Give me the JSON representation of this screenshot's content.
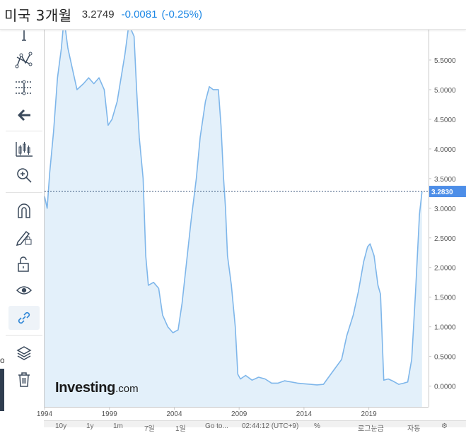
{
  "header": {
    "instrument_name": "미국 3개월",
    "price": "3.2749",
    "change": "-0.0081",
    "change_percent": "(-0.25%)",
    "change_color": "#1e88e5"
  },
  "toolbar": {
    "tools": [
      {
        "icon": "crosshair-icon"
      },
      {
        "icon": "pattern-draw-icon"
      },
      {
        "icon": "fibonacci-icon"
      },
      {
        "icon": "back-arrow-icon"
      },
      {
        "icon": "candlestick-icon"
      },
      {
        "icon": "zoom-icon"
      },
      {
        "icon": "magnet-icon"
      },
      {
        "icon": "pencil-lock-icon"
      },
      {
        "icon": "unlock-icon"
      },
      {
        "icon": "eye-icon"
      },
      {
        "icon": "link-icon"
      },
      {
        "icon": "layers-icon"
      },
      {
        "icon": "trash-icon"
      }
    ]
  },
  "side_stub_text": "o",
  "watermark": {
    "brand": "Investing",
    "suffix": ".com"
  },
  "bottom_bar": {
    "items": [
      "10y",
      "1y",
      "1m",
      "7일",
      "1일",
      "Go to...",
      "02:44:12 (UTC+9)",
      "%",
      "로그눈금",
      "자동"
    ]
  },
  "colors": {
    "line": "#7eb6ea",
    "fill": "#e3f0fa",
    "last_price_label_bg": "#4d8ee8",
    "accent": "#1e88e5"
  },
  "chart_data": {
    "type": "area",
    "title": "미국 3개월",
    "xlabel": "",
    "ylabel": "",
    "x_tick_labels": [
      "1994",
      "1999",
      "2004",
      "2009",
      "2014",
      "2019"
    ],
    "y_tick_labels": [
      "0.0000",
      "0.5000",
      "1.0000",
      "1.5000",
      "2.0000",
      "2.5000",
      "3.0000",
      "3.5000",
      "4.0000",
      "4.5000",
      "5.0000",
      "5.5000"
    ],
    "ylim": [
      -0.35,
      6.0
    ],
    "xlim": [
      1994.0,
      2023.6
    ],
    "last_value_label": "3.2830",
    "last_value": 3.283,
    "grid": false,
    "series": [
      {
        "values": [
          [
            1994.0,
            3.2
          ],
          [
            1994.2,
            3.0
          ],
          [
            1994.4,
            3.6
          ],
          [
            1994.7,
            4.3
          ],
          [
            1995.0,
            5.2
          ],
          [
            1995.3,
            5.7
          ],
          [
            1995.5,
            6.2
          ],
          [
            1995.8,
            5.7
          ],
          [
            1996.1,
            5.4
          ],
          [
            1996.5,
            5.0
          ],
          [
            1997.0,
            5.1
          ],
          [
            1997.4,
            5.2
          ],
          [
            1997.8,
            5.1
          ],
          [
            1998.2,
            5.2
          ],
          [
            1998.6,
            5.0
          ],
          [
            1998.9,
            4.4
          ],
          [
            1999.2,
            4.5
          ],
          [
            1999.6,
            4.8
          ],
          [
            1999.9,
            5.2
          ],
          [
            2000.2,
            5.6
          ],
          [
            2000.5,
            6.1
          ],
          [
            2000.7,
            6.0
          ],
          [
            2000.9,
            5.9
          ],
          [
            2001.1,
            5.0
          ],
          [
            2001.3,
            4.2
          ],
          [
            2001.6,
            3.5
          ],
          [
            2001.8,
            2.2
          ],
          [
            2002.0,
            1.7
          ],
          [
            2002.4,
            1.75
          ],
          [
            2002.8,
            1.65
          ],
          [
            2003.1,
            1.2
          ],
          [
            2003.5,
            1.0
          ],
          [
            2003.9,
            0.9
          ],
          [
            2004.3,
            0.95
          ],
          [
            2004.6,
            1.4
          ],
          [
            2004.9,
            2.0
          ],
          [
            2005.3,
            2.8
          ],
          [
            2005.7,
            3.5
          ],
          [
            2006.0,
            4.2
          ],
          [
            2006.4,
            4.8
          ],
          [
            2006.7,
            5.05
          ],
          [
            2007.0,
            5.0
          ],
          [
            2007.4,
            5.0
          ],
          [
            2007.6,
            4.4
          ],
          [
            2007.8,
            3.5
          ],
          [
            2007.95,
            3.0
          ],
          [
            2008.1,
            2.2
          ],
          [
            2008.4,
            1.7
          ],
          [
            2008.7,
            1.0
          ],
          [
            2008.9,
            0.2
          ],
          [
            2009.1,
            0.12
          ],
          [
            2009.5,
            0.18
          ],
          [
            2010.0,
            0.1
          ],
          [
            2010.5,
            0.15
          ],
          [
            2011.0,
            0.12
          ],
          [
            2011.5,
            0.05
          ],
          [
            2012.0,
            0.05
          ],
          [
            2012.5,
            0.09
          ],
          [
            2013.0,
            0.07
          ],
          [
            2013.5,
            0.05
          ],
          [
            2014.0,
            0.04
          ],
          [
            2014.5,
            0.03
          ],
          [
            2015.0,
            0.02
          ],
          [
            2015.5,
            0.03
          ],
          [
            2015.9,
            0.15
          ],
          [
            2016.4,
            0.3
          ],
          [
            2016.9,
            0.45
          ],
          [
            2017.3,
            0.85
          ],
          [
            2017.8,
            1.2
          ],
          [
            2018.2,
            1.6
          ],
          [
            2018.6,
            2.1
          ],
          [
            2018.9,
            2.35
          ],
          [
            2019.1,
            2.4
          ],
          [
            2019.4,
            2.2
          ],
          [
            2019.7,
            1.7
          ],
          [
            2019.9,
            1.55
          ],
          [
            2020.15,
            0.1
          ],
          [
            2020.5,
            0.12
          ],
          [
            2020.9,
            0.08
          ],
          [
            2021.3,
            0.03
          ],
          [
            2021.7,
            0.05
          ],
          [
            2022.0,
            0.07
          ],
          [
            2022.3,
            0.45
          ],
          [
            2022.6,
            1.6
          ],
          [
            2022.9,
            2.9
          ],
          [
            2023.1,
            3.283
          ]
        ]
      }
    ]
  }
}
